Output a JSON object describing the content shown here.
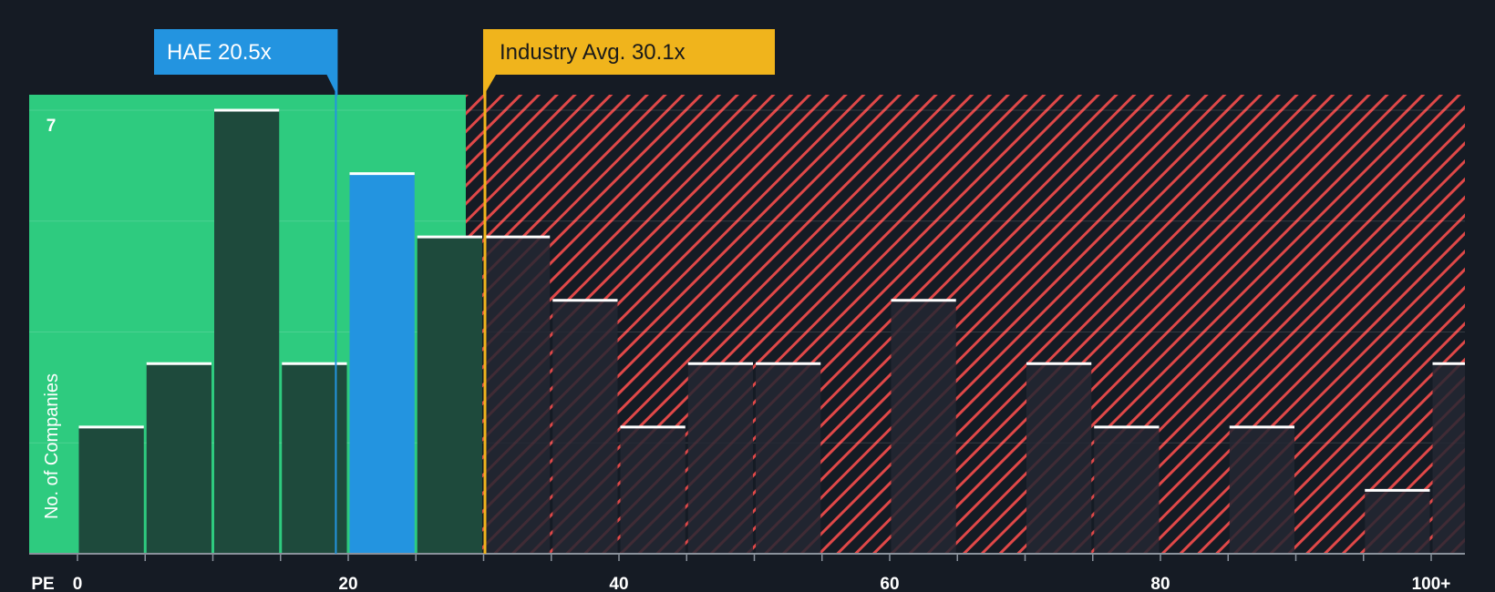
{
  "colors": {
    "background": "#151b24",
    "good_zone": "#2ecb7f",
    "bad_zone": "#e04848",
    "bar_in_good": "#1e4a3c",
    "bar_in_bad": "#232733",
    "bar_highlight": "#2394e0",
    "cap_line": "#ffffff",
    "company_callout": "#2394e0",
    "industry_callout": "#f0b41c"
  },
  "chart_data": {
    "type": "bar",
    "title": "",
    "xlabel": "PE",
    "ylabel": "No. of Companies",
    "bin_width": 5,
    "bins": [
      {
        "start": 0,
        "end": 5,
        "count": 2
      },
      {
        "start": 5,
        "end": 10,
        "count": 3
      },
      {
        "start": 10,
        "end": 15,
        "count": 7
      },
      {
        "start": 15,
        "end": 20,
        "count": 3
      },
      {
        "start": 20,
        "end": 25,
        "count": 6,
        "highlight": true
      },
      {
        "start": 25,
        "end": 30,
        "count": 5
      },
      {
        "start": 30,
        "end": 35,
        "count": 5
      },
      {
        "start": 35,
        "end": 40,
        "count": 4
      },
      {
        "start": 40,
        "end": 45,
        "count": 2
      },
      {
        "start": 45,
        "end": 50,
        "count": 3
      },
      {
        "start": 50,
        "end": 55,
        "count": 3
      },
      {
        "start": 55,
        "end": 60,
        "count": 0
      },
      {
        "start": 60,
        "end": 65,
        "count": 4
      },
      {
        "start": 65,
        "end": 70,
        "count": 0
      },
      {
        "start": 70,
        "end": 75,
        "count": 3
      },
      {
        "start": 75,
        "end": 80,
        "count": 2
      },
      {
        "start": 80,
        "end": 85,
        "count": 0
      },
      {
        "start": 85,
        "end": 90,
        "count": 2
      },
      {
        "start": 90,
        "end": 95,
        "count": 0
      },
      {
        "start": 95,
        "end": 100,
        "count": 1
      },
      {
        "start": 100,
        "end": 105,
        "count": 3
      }
    ],
    "xlim": [
      0,
      102
    ],
    "ylim": [
      0,
      7.25
    ],
    "x_ticks": [
      {
        "value": 0,
        "label": "0"
      },
      {
        "value": 20,
        "label": "20"
      },
      {
        "value": 40,
        "label": "40"
      },
      {
        "value": 60,
        "label": "60"
      },
      {
        "value": 80,
        "label": "80"
      },
      {
        "value": 100,
        "label": "100+"
      }
    ],
    "y_tick_label": {
      "value": 7,
      "label": "7"
    },
    "company": {
      "ticker": "HAE",
      "pe": 20.5,
      "label": "HAE 20.5x"
    },
    "industry": {
      "pe": 30.1,
      "label": "Industry Avg. 30.1x"
    }
  }
}
